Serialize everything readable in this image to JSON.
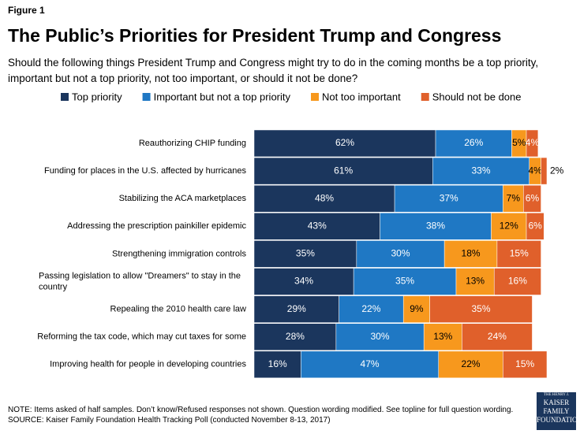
{
  "chart_data": {
    "type": "bar",
    "orientation": "horizontal",
    "stacked": true,
    "figure_label": "Figure 1",
    "title": "The Public’s Priorities for President Trump and Congress",
    "subtitle": "Should the following things President Trump and Congress might try to do in the coming months be a top priority, important but not a top priority, not too important, or should it not be done?",
    "categories": [
      "Reauthorizing CHIP funding",
      "Funding for places in the U.S. affected by hurricanes",
      "Stabilizing the ACA marketplaces",
      "Addressing the prescription painkiller epidemic",
      "Strengthening immigration controls",
      "Passing legislation to allow \"Dreamers\" to stay in the country",
      "Repealing the 2010 health care law",
      "Reforming the tax code, which may cut taxes for some",
      "Improving health for people in developing countries"
    ],
    "series": [
      {
        "name": "Top priority",
        "color": "#1b365d",
        "values": [
          62,
          61,
          48,
          43,
          35,
          34,
          29,
          28,
          16
        ],
        "value_labels": [
          "62%",
          "61%",
          "48%",
          "43%",
          "35%",
          "34%",
          "29%",
          "28%",
          "16%"
        ]
      },
      {
        "name": "Important but not a top priority",
        "color": "#1f78c4",
        "values": [
          26,
          33,
          37,
          38,
          30,
          35,
          22,
          30,
          47
        ],
        "value_labels": [
          "26%",
          "33%",
          "37%",
          "38%",
          "30%",
          "35%",
          "22%",
          "30%",
          "47%"
        ]
      },
      {
        "name": "Not too important",
        "color": "#f7981d",
        "values": [
          5,
          4,
          7,
          12,
          18,
          13,
          9,
          13,
          22
        ],
        "value_labels": [
          "5%",
          "4%",
          "7%",
          "12%",
          "18%",
          "13%",
          "9%",
          "13%",
          "22%"
        ]
      },
      {
        "name": "Should not be done",
        "color": "#e0602b",
        "values": [
          4,
          2,
          6,
          6,
          15,
          16,
          35,
          24,
          15
        ],
        "value_labels": [
          "4%",
          "2%",
          "6%",
          "6%",
          "15%",
          "16%",
          "35%",
          "24%",
          "15%"
        ]
      }
    ],
    "note": "NOTE: Items asked of half samples. Don’t know/Refused responses not shown. Question wording modified. See topline for full question wording.",
    "source": "SOURCE: Kaiser Family Foundation Health Tracking Poll (conducted November 8-13, 2017)",
    "logo": [
      "THE HENRY J.",
      "KAISER",
      "FAMILY",
      "FOUNDATION"
    ]
  }
}
